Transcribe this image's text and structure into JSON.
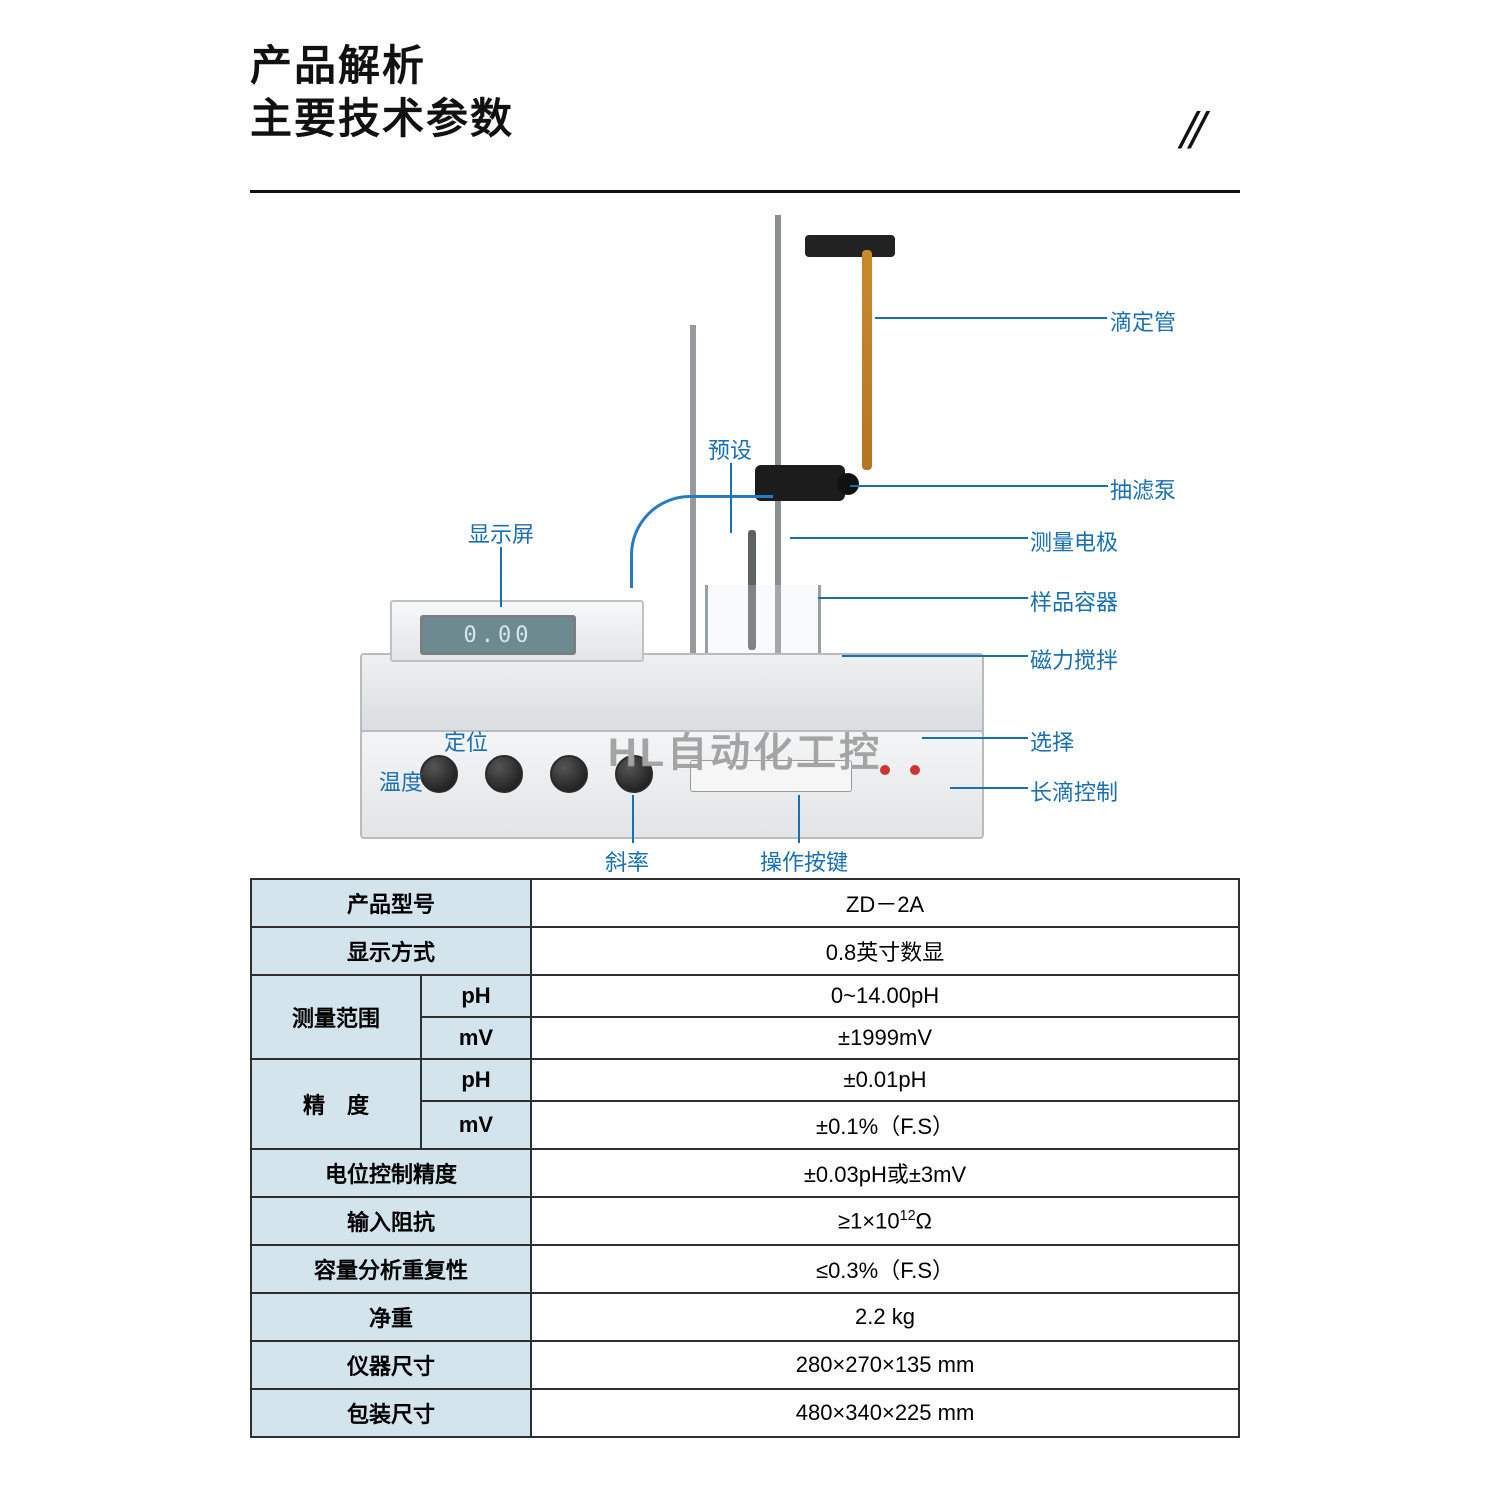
{
  "heading": {
    "line1": "产品解析",
    "line2": "主要技术参数",
    "slashes": "//"
  },
  "watermark": "HL自动化工控",
  "diagram": {
    "lcd_value": "0.00",
    "callouts": {
      "burette": "滴定管",
      "pump": "抽滤泵",
      "electrode": "测量电极",
      "vessel": "样品容器",
      "stirrer": "磁力搅拌",
      "select": "选择",
      "longdrop": "长滴控制",
      "preset": "预设",
      "display": "显示屏",
      "position": "定位",
      "temp": "温度",
      "slope": "斜率",
      "keys": "操作按键"
    },
    "callout_color": "#1a6fb0"
  },
  "table": {
    "header_bg": "#d3e4ec",
    "border_color": "#2f2f2f",
    "rows": [
      {
        "label": "产品型号",
        "value": "ZD－2A"
      },
      {
        "label": "显示方式",
        "value": "0.8英寸数显"
      },
      {
        "label_group": "测量范围",
        "subs": [
          {
            "sub": "pH",
            "value": "0~14.00pH"
          },
          {
            "sub": "mV",
            "value": "±1999mV"
          }
        ]
      },
      {
        "label_group": "精　度",
        "subs": [
          {
            "sub": "pH",
            "value": "±0.01pH"
          },
          {
            "sub": "mV",
            "value": "±0.1%（F.S）"
          }
        ]
      },
      {
        "label": "电位控制精度",
        "value": "±0.03pH或±3mV"
      },
      {
        "label": "输入阻抗",
        "value_html": "≥1×10<sup>12</sup>Ω"
      },
      {
        "label": "容量分析重复性",
        "value": "≤0.3%（F.S）"
      },
      {
        "label": "净重",
        "value": "2.2 kg"
      },
      {
        "label": "仪器尺寸",
        "value": "280×270×135 mm"
      },
      {
        "label": "包装尺寸",
        "value": "480×340×225 mm"
      }
    ]
  }
}
